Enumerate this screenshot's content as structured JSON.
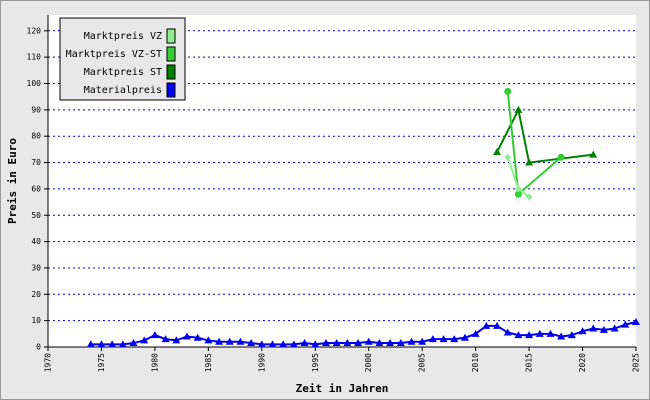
{
  "chart_data": {
    "type": "line",
    "x_label": "Zeit in Jahren",
    "y_label": "Preis in Euro",
    "xlim": [
      1970,
      2025
    ],
    "xticks": [
      1970,
      1975,
      1980,
      1985,
      1990,
      1995,
      2000,
      2005,
      2010,
      2015,
      2020,
      2025
    ],
    "ylim": [
      0,
      126
    ],
    "yticks": [
      0,
      10,
      20,
      30,
      40,
      50,
      60,
      70,
      80,
      90,
      100,
      110,
      120
    ],
    "grid": true,
    "legend": "upper-left",
    "series": [
      {
        "name": "Marktpreis VZ",
        "color": "#90ee90",
        "marker": "diamond",
        "x": [
          2013,
          2014,
          2015
        ],
        "values": [
          72,
          60,
          57
        ]
      },
      {
        "name": "Marktpreis VZ-ST",
        "color": "#33cc33",
        "marker": "circle",
        "x": [
          2013,
          2014,
          2018
        ],
        "values": [
          97,
          58,
          72
        ]
      },
      {
        "name": "Marktpreis ST",
        "color": "#008000",
        "marker": "triangle",
        "x": [
          2012,
          2014,
          2015,
          2021
        ],
        "values": [
          74,
          90,
          70,
          73
        ]
      },
      {
        "name": "Materialpreis",
        "color": "#0000ee",
        "marker": "triangle",
        "x": [
          1974,
          1975,
          1976,
          1977,
          1978,
          1979,
          1980,
          1981,
          1982,
          1983,
          1984,
          1985,
          1986,
          1987,
          1988,
          1989,
          1990,
          1991,
          1992,
          1993,
          1994,
          1995,
          1996,
          1997,
          1998,
          1999,
          2000,
          2001,
          2002,
          2003,
          2004,
          2005,
          2006,
          2007,
          2008,
          2009,
          2010,
          2011,
          2012,
          2013,
          2014,
          2015,
          2016,
          2017,
          2018,
          2019,
          2020,
          2021,
          2022,
          2023,
          2024,
          2025
        ],
        "values": [
          1,
          1,
          1,
          1,
          1.5,
          2.5,
          4.5,
          3,
          2.5,
          4,
          3.5,
          2.5,
          2,
          2,
          2,
          1.5,
          1,
          1,
          1,
          1,
          1.5,
          1,
          1.5,
          1.5,
          1.5,
          1.5,
          2,
          1.5,
          1.5,
          1.5,
          2,
          2,
          3,
          3,
          3,
          3.5,
          5,
          8,
          8,
          5.5,
          4.5,
          4.5,
          5,
          5,
          4,
          4.5,
          6,
          7,
          6.5,
          7,
          8.5,
          9.5
        ]
      }
    ]
  }
}
